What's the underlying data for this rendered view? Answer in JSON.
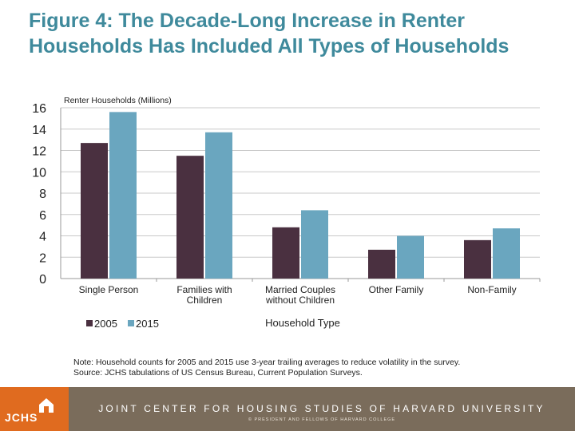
{
  "title": {
    "line1": "Figure 4: The Decade-Long Increase in Renter",
    "line2": "Households Has Included All Types of Households"
  },
  "chart_data": {
    "type": "bar",
    "ylabel": "Renter Households (Millions)",
    "xlabel": "Household Type",
    "ylim": [
      0,
      16
    ],
    "yticks": [
      0,
      2,
      4,
      6,
      8,
      10,
      12,
      14,
      16
    ],
    "grid": true,
    "legend_position": "bottom-left",
    "categories": [
      [
        "Single Person"
      ],
      [
        "Families with",
        "Children"
      ],
      [
        "Married Couples",
        "without Children"
      ],
      [
        "Other Family"
      ],
      [
        "Non-Family"
      ]
    ],
    "series": [
      {
        "name": "2005",
        "color": "#4a3040",
        "values": [
          12.7,
          11.5,
          4.8,
          2.7,
          3.6
        ]
      },
      {
        "name": "2015",
        "color": "#6aa6bf",
        "values": [
          15.6,
          13.7,
          6.4,
          4.0,
          4.7
        ]
      }
    ]
  },
  "note": {
    "line1": "Note: Household counts for 2005 and 2015 use 3-year trailing averages to reduce volatility in the survey.",
    "line2": "Source: JCHS tabulations of US Census Bureau, Current Population Surveys."
  },
  "footer": {
    "logo": "JCHS",
    "org": "JOINT CENTER FOR HOUSING STUDIES OF HARVARD UNIVERSITY",
    "copyright": "© PRESIDENT AND FELLOWS OF HARVARD COLLEGE"
  }
}
